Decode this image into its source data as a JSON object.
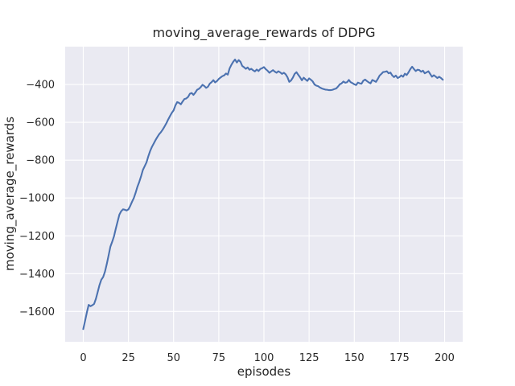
{
  "chart_data": {
    "type": "line",
    "title": "moving_average_rewards of DDPG",
    "xlabel": "episodes",
    "ylabel": "moving_average_rewards",
    "xlim": [
      -10,
      210
    ],
    "ylim": [
      -1760,
      -200
    ],
    "xticks": [
      0,
      25,
      50,
      75,
      100,
      125,
      150,
      175,
      200
    ],
    "xtick_labels": [
      "0",
      "25",
      "50",
      "75",
      "100",
      "125",
      "150",
      "175",
      "200"
    ],
    "yticks": [
      -400,
      -600,
      -800,
      -1000,
      -1200,
      -1400,
      -1600
    ],
    "ytick_labels": [
      "−400",
      "−600",
      "−800",
      "−1000",
      "−1200",
      "−1400",
      "−1600"
    ],
    "grid": true,
    "legend": "none",
    "colors": {
      "line": "#4C72B0",
      "plot_background": "#EAEAF2",
      "grid": "#FFFFFF",
      "text": "#262626",
      "figure_background": "#FFFFFF"
    },
    "series": [
      {
        "name": "moving_average_rewards",
        "x": [
          0,
          1,
          2,
          3,
          4,
          5,
          6,
          7,
          8,
          9,
          10,
          11,
          12,
          13,
          14,
          15,
          16,
          17,
          18,
          19,
          20,
          21,
          22,
          23,
          24,
          25,
          26,
          27,
          28,
          29,
          30,
          31,
          32,
          33,
          34,
          35,
          36,
          37,
          38,
          39,
          40,
          41,
          42,
          43,
          44,
          45,
          46,
          47,
          48,
          49,
          50,
          51,
          52,
          53,
          54,
          55,
          56,
          57,
          58,
          59,
          60,
          61,
          62,
          63,
          64,
          65,
          66,
          67,
          68,
          69,
          70,
          71,
          72,
          73,
          74,
          75,
          76,
          77,
          78,
          79,
          80,
          81,
          82,
          83,
          84,
          85,
          86,
          87,
          88,
          89,
          90,
          91,
          92,
          93,
          94,
          95,
          96,
          97,
          98,
          99,
          100,
          101,
          102,
          103,
          104,
          105,
          106,
          107,
          108,
          109,
          110,
          111,
          112,
          113,
          114,
          115,
          116,
          117,
          118,
          119,
          120,
          121,
          122,
          123,
          124,
          125,
          126,
          127,
          128,
          129,
          130,
          131,
          132,
          133,
          134,
          135,
          136,
          137,
          138,
          139,
          140,
          141,
          142,
          143,
          144,
          145,
          146,
          147,
          148,
          149,
          150,
          151,
          152,
          153,
          154,
          155,
          156,
          157,
          158,
          159,
          160,
          161,
          162,
          163,
          164,
          165,
          166,
          167,
          168,
          169,
          170,
          171,
          172,
          173,
          174,
          175,
          176,
          177,
          178,
          179,
          180,
          181,
          182,
          183,
          184,
          185,
          186,
          187,
          188,
          189,
          190,
          191,
          192,
          193,
          194,
          195,
          196,
          197,
          198,
          199
        ],
        "values": [
          -1693,
          -1650,
          -1605,
          -1565,
          -1572,
          -1567,
          -1560,
          -1533,
          -1497,
          -1460,
          -1432,
          -1418,
          -1390,
          -1350,
          -1305,
          -1258,
          -1232,
          -1203,
          -1163,
          -1125,
          -1088,
          -1070,
          -1060,
          -1062,
          -1066,
          -1060,
          -1042,
          -1020,
          -1000,
          -972,
          -940,
          -915,
          -885,
          -852,
          -832,
          -812,
          -780,
          -752,
          -730,
          -712,
          -694,
          -678,
          -663,
          -652,
          -638,
          -622,
          -605,
          -585,
          -567,
          -550,
          -537,
          -511,
          -493,
          -497,
          -505,
          -490,
          -477,
          -474,
          -466,
          -449,
          -445,
          -455,
          -443,
          -428,
          -423,
          -414,
          -402,
          -408,
          -418,
          -412,
          -396,
          -388,
          -377,
          -389,
          -382,
          -371,
          -363,
          -356,
          -352,
          -342,
          -348,
          -315,
          -296,
          -280,
          -268,
          -284,
          -271,
          -280,
          -302,
          -309,
          -317,
          -310,
          -322,
          -317,
          -325,
          -331,
          -321,
          -329,
          -318,
          -314,
          -308,
          -319,
          -327,
          -338,
          -331,
          -324,
          -332,
          -338,
          -330,
          -336,
          -344,
          -338,
          -346,
          -361,
          -386,
          -379,
          -364,
          -344,
          -335,
          -349,
          -362,
          -378,
          -364,
          -373,
          -381,
          -368,
          -375,
          -384,
          -400,
          -406,
          -409,
          -416,
          -421,
          -424,
          -427,
          -428,
          -430,
          -430,
          -428,
          -424,
          -421,
          -411,
          -399,
          -394,
          -384,
          -391,
          -388,
          -376,
          -388,
          -393,
          -399,
          -403,
          -390,
          -394,
          -396,
          -380,
          -374,
          -382,
          -389,
          -394,
          -376,
          -381,
          -386,
          -371,
          -353,
          -344,
          -334,
          -333,
          -330,
          -341,
          -337,
          -352,
          -361,
          -353,
          -366,
          -361,
          -352,
          -359,
          -343,
          -350,
          -336,
          -319,
          -306,
          -318,
          -329,
          -322,
          -324,
          -333,
          -327,
          -341,
          -336,
          -330,
          -344,
          -359,
          -351,
          -358,
          -366,
          -359,
          -366,
          -375
        ]
      }
    ]
  }
}
